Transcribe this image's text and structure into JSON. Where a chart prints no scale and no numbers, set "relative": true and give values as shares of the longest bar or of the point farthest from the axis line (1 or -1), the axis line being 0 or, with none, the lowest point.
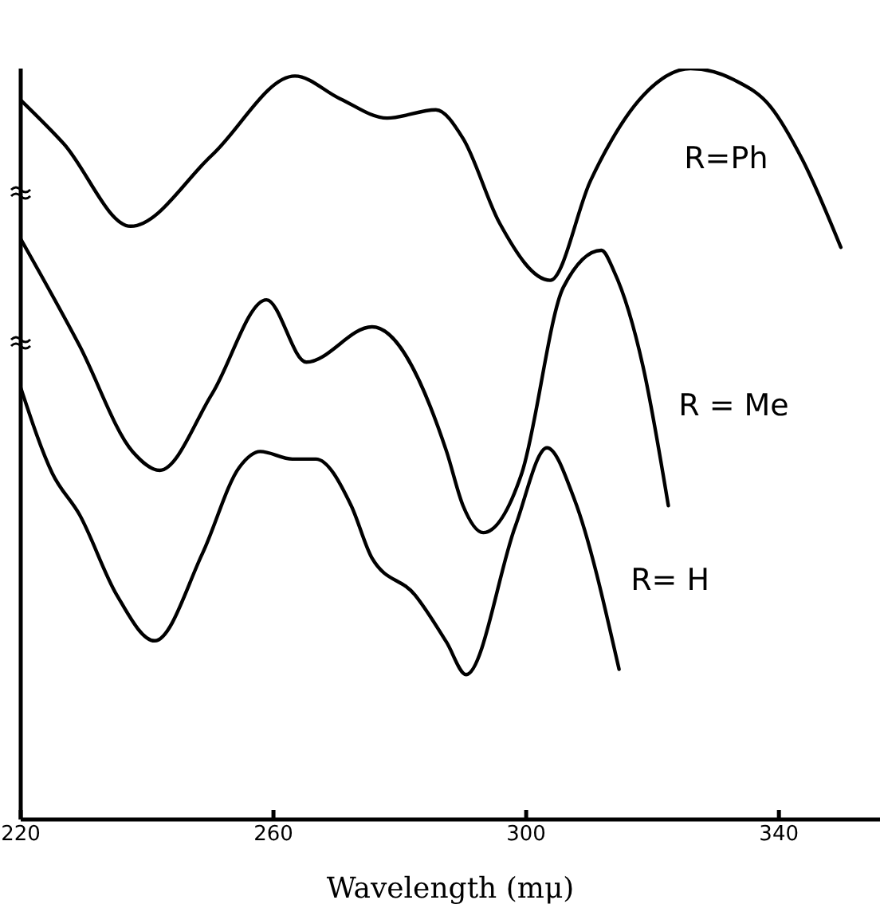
{
  "chart_data": {
    "type": "line",
    "xlabel": "Wavelength (mμ)",
    "relative": true,
    "xlim": [
      220,
      356
    ],
    "xticks": [
      220,
      260,
      300,
      340
    ],
    "grid": false,
    "legend": false,
    "marker": "none",
    "line_style": "solid",
    "series": [
      {
        "name": "R=Ph",
        "color": "#000000",
        "x": [
          220,
          226.8,
          237.4,
          250.3,
          263.4,
          270.5,
          278,
          285.7,
          290,
          295.8,
          303.8,
          310.2,
          318.5,
          326,
          332.9,
          338.7,
          343.7,
          349.8
        ],
        "values": [
          0.958,
          0.9,
          0.79,
          0.885,
          0.99,
          0.96,
          0.934,
          0.945,
          0.907,
          0.794,
          0.718,
          0.851,
          0.964,
          1.0,
          0.985,
          0.949,
          0.879,
          0.762
        ]
      },
      {
        "name": "R = Me",
        "color": "#000000",
        "x": [
          220,
          229.3,
          237.7,
          242,
          250.3,
          258.9,
          265.2,
          275.6,
          287.4,
          290,
          293.2,
          299.3,
          305.9,
          311.9,
          313.9,
          318.5,
          322.5
        ],
        "values": [
          0.773,
          0.631,
          0.49,
          0.465,
          0.567,
          0.692,
          0.609,
          0.656,
          0.49,
          0.418,
          0.382,
          0.461,
          0.709,
          0.758,
          0.73,
          0.603,
          0.418
        ]
      },
      {
        "name": "R= H",
        "color": "#000000",
        "x": [
          220,
          225,
          229.3,
          235.2,
          241.2,
          248.8,
          254.6,
          257.9,
          263,
          266.7,
          272.3,
          275.6,
          282.4,
          287.4,
          290.5,
          298.3,
          303.3,
          307.6,
          314.7
        ],
        "values": [
          0.575,
          0.461,
          0.406,
          0.299,
          0.238,
          0.355,
          0.469,
          0.49,
          0.48,
          0.48,
          0.418,
          0.348,
          0.299,
          0.236,
          0.193,
          0.391,
          0.495,
          0.427,
          0.2
        ]
      }
    ]
  }
}
